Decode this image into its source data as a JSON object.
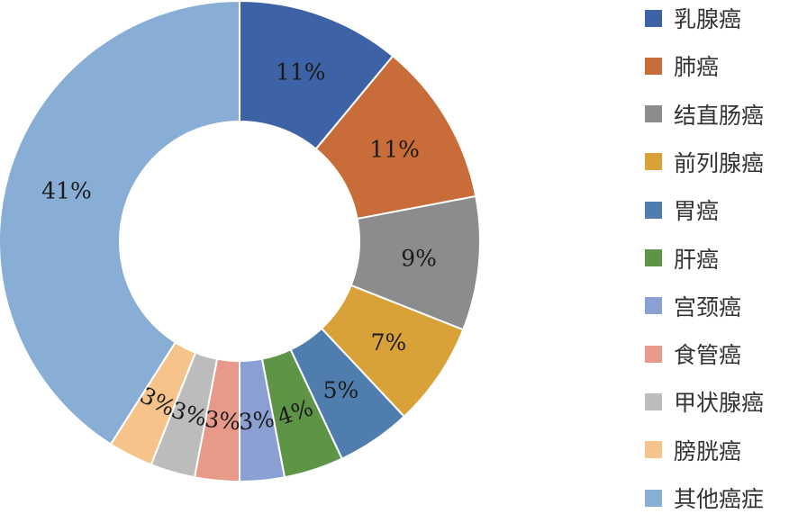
{
  "chart_data": {
    "type": "pie",
    "donut": true,
    "legend_position": "right",
    "categories": [
      "乳腺癌",
      "肺癌",
      "结直肠癌",
      "前列腺癌",
      "胃癌",
      "肝癌",
      "宫颈癌",
      "食管癌",
      "甲状腺癌",
      "膀胱癌",
      "其他癌症"
    ],
    "values": [
      11,
      11,
      9,
      7,
      5,
      4,
      3,
      3,
      3,
      3,
      41
    ],
    "labels": [
      "11%",
      "11%",
      "9%",
      "7%",
      "5%",
      "4%",
      "3%",
      "3%",
      "3%",
      "3%",
      "41%"
    ],
    "colors": [
      "#3d63a6",
      "#c86d3a",
      "#8c8c8e",
      "#d9a238",
      "#4e7dae",
      "#5e9445",
      "#8aa0d2",
      "#e7998a",
      "#bcbcbc",
      "#f6c48b",
      "#88aed6"
    ]
  }
}
